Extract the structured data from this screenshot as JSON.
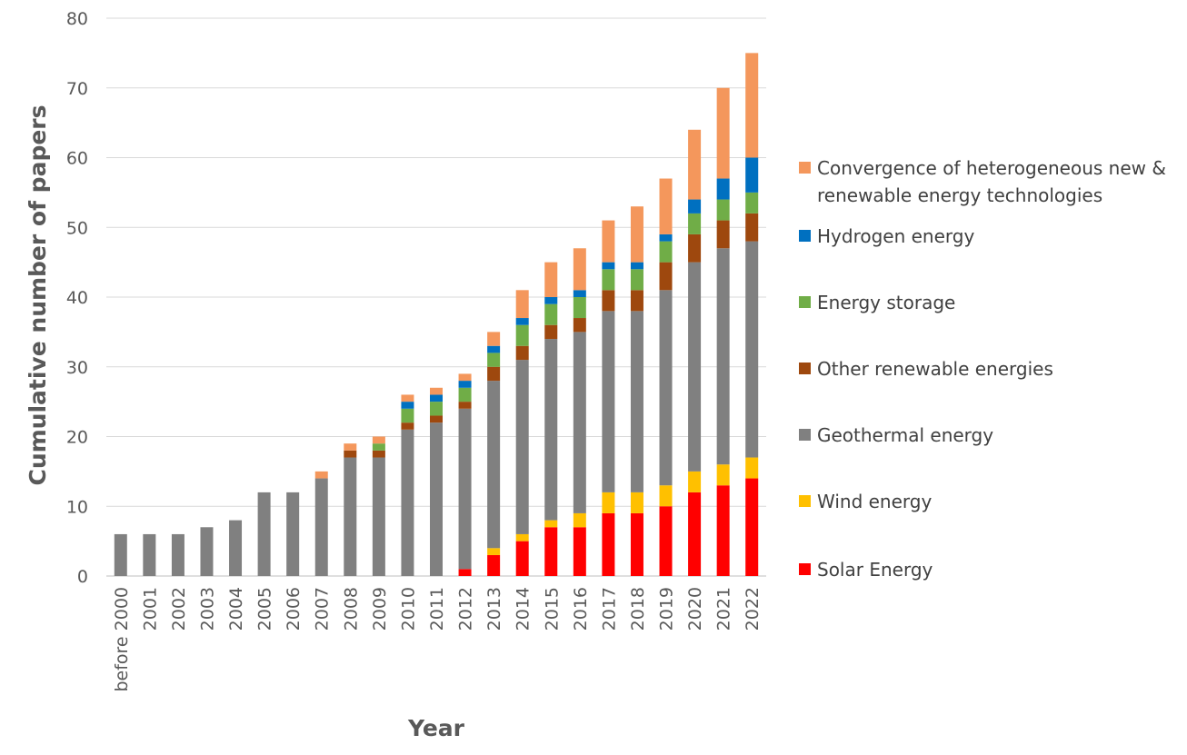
{
  "chart_data": {
    "type": "bar",
    "stacked": true,
    "title": "",
    "xlabel": "Year",
    "ylabel": "Cumulative number of papers",
    "ylim": [
      0,
      80
    ],
    "yticks": [
      0,
      10,
      20,
      30,
      40,
      50,
      60,
      70,
      80
    ],
    "grid": true,
    "legend_position": "right",
    "categories": [
      "before 2000",
      "2001",
      "2002",
      "2003",
      "2004",
      "2005",
      "2006",
      "2007",
      "2008",
      "2009",
      "2010",
      "2011",
      "2012",
      "2013",
      "2014",
      "2015",
      "2016",
      "2017",
      "2018",
      "2019",
      "2020",
      "2021",
      "2022"
    ],
    "series": [
      {
        "name": "Solar Energy",
        "color": "#ff0000",
        "values": [
          0,
          0,
          0,
          0,
          0,
          0,
          0,
          0,
          0,
          0,
          0,
          0,
          1,
          3,
          5,
          7,
          7,
          9,
          9,
          10,
          12,
          13,
          14
        ]
      },
      {
        "name": "Wind energy",
        "color": "#ffc000",
        "values": [
          0,
          0,
          0,
          0,
          0,
          0,
          0,
          0,
          0,
          0,
          0,
          0,
          0,
          1,
          1,
          1,
          2,
          3,
          3,
          3,
          3,
          3,
          3
        ]
      },
      {
        "name": "Geothermal energy",
        "color": "#808080",
        "values": [
          6,
          6,
          6,
          7,
          8,
          12,
          12,
          14,
          17,
          17,
          21,
          22,
          23,
          24,
          25,
          26,
          26,
          26,
          26,
          28,
          30,
          31,
          31
        ]
      },
      {
        "name": "Other renewable energies",
        "color": "#9e480e",
        "values": [
          0,
          0,
          0,
          0,
          0,
          0,
          0,
          0,
          1,
          1,
          1,
          1,
          1,
          2,
          2,
          2,
          2,
          3,
          3,
          4,
          4,
          4,
          4
        ]
      },
      {
        "name": "Energy storage",
        "color": "#70ad47",
        "values": [
          0,
          0,
          0,
          0,
          0,
          0,
          0,
          0,
          0,
          1,
          2,
          2,
          2,
          2,
          3,
          3,
          3,
          3,
          3,
          3,
          3,
          3,
          3
        ]
      },
      {
        "name": "Hydrogen energy",
        "color": "#0070c0",
        "values": [
          0,
          0,
          0,
          0,
          0,
          0,
          0,
          0,
          0,
          0,
          1,
          1,
          1,
          1,
          1,
          1,
          1,
          1,
          1,
          1,
          2,
          3,
          5
        ]
      },
      {
        "name": "Convergence of heterogeneous new & renewable energy technologies",
        "color": "#f4975c",
        "values": [
          0,
          0,
          0,
          0,
          0,
          0,
          0,
          1,
          1,
          1,
          1,
          1,
          1,
          2,
          4,
          5,
          6,
          6,
          8,
          8,
          10,
          13,
          15
        ]
      }
    ],
    "legend_lines": [
      [
        "Convergence of heterogeneous new &",
        "renewable energy technologies"
      ],
      [
        "Hydrogen energy"
      ],
      [
        "Energy storage"
      ],
      [
        "Other renewable energies"
      ],
      [
        "Geothermal energy"
      ],
      [
        "Wind energy"
      ],
      [
        "Solar Energy"
      ]
    ]
  }
}
